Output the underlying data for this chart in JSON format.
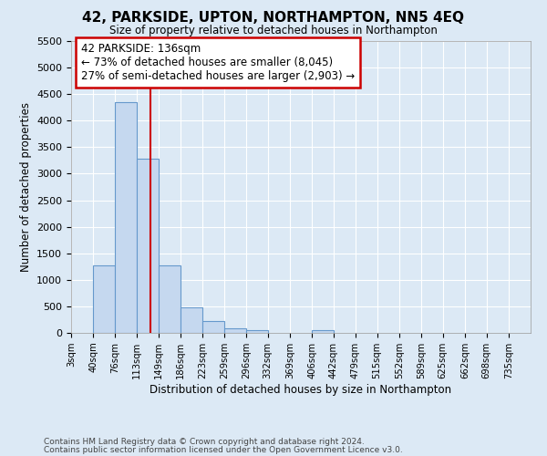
{
  "title": "42, PARKSIDE, UPTON, NORTHAMPTON, NN5 4EQ",
  "subtitle": "Size of property relative to detached houses in Northampton",
  "xlabel": "Distribution of detached houses by size in Northampton",
  "ylabel": "Number of detached properties",
  "bin_labels": [
    "3sqm",
    "40sqm",
    "76sqm",
    "113sqm",
    "149sqm",
    "186sqm",
    "223sqm",
    "259sqm",
    "296sqm",
    "332sqm",
    "369sqm",
    "406sqm",
    "442sqm",
    "479sqm",
    "515sqm",
    "552sqm",
    "589sqm",
    "625sqm",
    "662sqm",
    "698sqm",
    "735sqm"
  ],
  "bin_edges": [
    3,
    40,
    76,
    113,
    149,
    186,
    223,
    259,
    296,
    332,
    369,
    406,
    442,
    479,
    515,
    552,
    589,
    625,
    662,
    698,
    735
  ],
  "bar_heights": [
    0,
    1280,
    4350,
    3280,
    1280,
    480,
    230,
    90,
    60,
    0,
    0,
    60,
    0,
    0,
    0,
    0,
    0,
    0,
    0,
    0
  ],
  "bar_color": "#c5d8ef",
  "bar_edge_color": "#6699cc",
  "property_line_x": 136,
  "property_line_color": "#cc0000",
  "annotation_text": "42 PARKSIDE: 136sqm\n← 73% of detached houses are smaller (8,045)\n27% of semi-detached houses are larger (2,903) →",
  "annotation_box_facecolor": "#ffffff",
  "annotation_box_edgecolor": "#cc0000",
  "ylim_max": 5500,
  "yticks": [
    0,
    500,
    1000,
    1500,
    2000,
    2500,
    3000,
    3500,
    4000,
    4500,
    5000,
    5500
  ],
  "background_color": "#dce9f5",
  "grid_color": "#ffffff",
  "footer1": "Contains HM Land Registry data © Crown copyright and database right 2024.",
  "footer2": "Contains public sector information licensed under the Open Government Licence v3.0."
}
